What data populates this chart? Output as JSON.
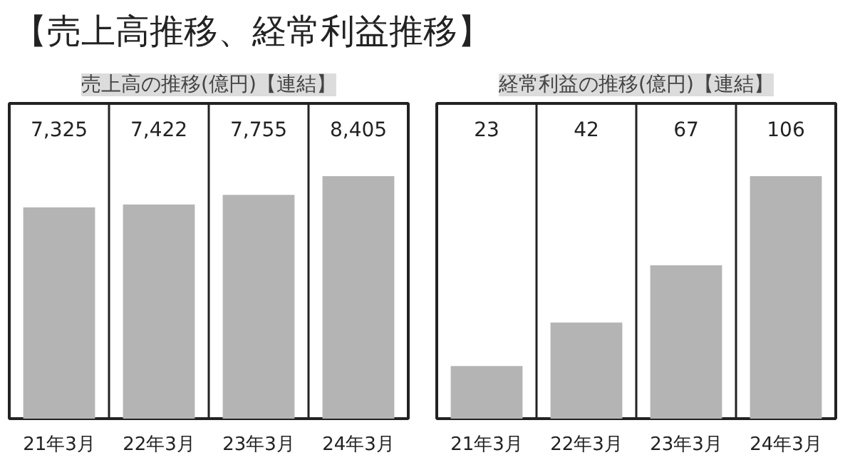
{
  "chart_data": [
    {
      "type": "bar",
      "title": "【売上高推移、経常利益推移】",
      "subtitle": "売上高の推移(億円)【連結】",
      "categories": [
        "21年3月",
        "22年3月",
        "23年3月",
        "24年3月"
      ],
      "values": [
        7325,
        7422,
        7755,
        8405
      ],
      "value_labels": [
        "7,325",
        "7,422",
        "7,755",
        "8,405"
      ],
      "tick_labels": "x",
      "color": "#b4b4b4"
    },
    {
      "type": "bar",
      "subtitle": "経常利益の推移(億円)【連結】",
      "categories": [
        "21年3月",
        "22年3月",
        "23年3月",
        "24年3月"
      ],
      "values": [
        23,
        42,
        67,
        106
      ],
      "value_labels": [
        "23",
        "42",
        "67",
        "106"
      ],
      "tick_labels": "x",
      "color": "#b4b4b4"
    }
  ]
}
